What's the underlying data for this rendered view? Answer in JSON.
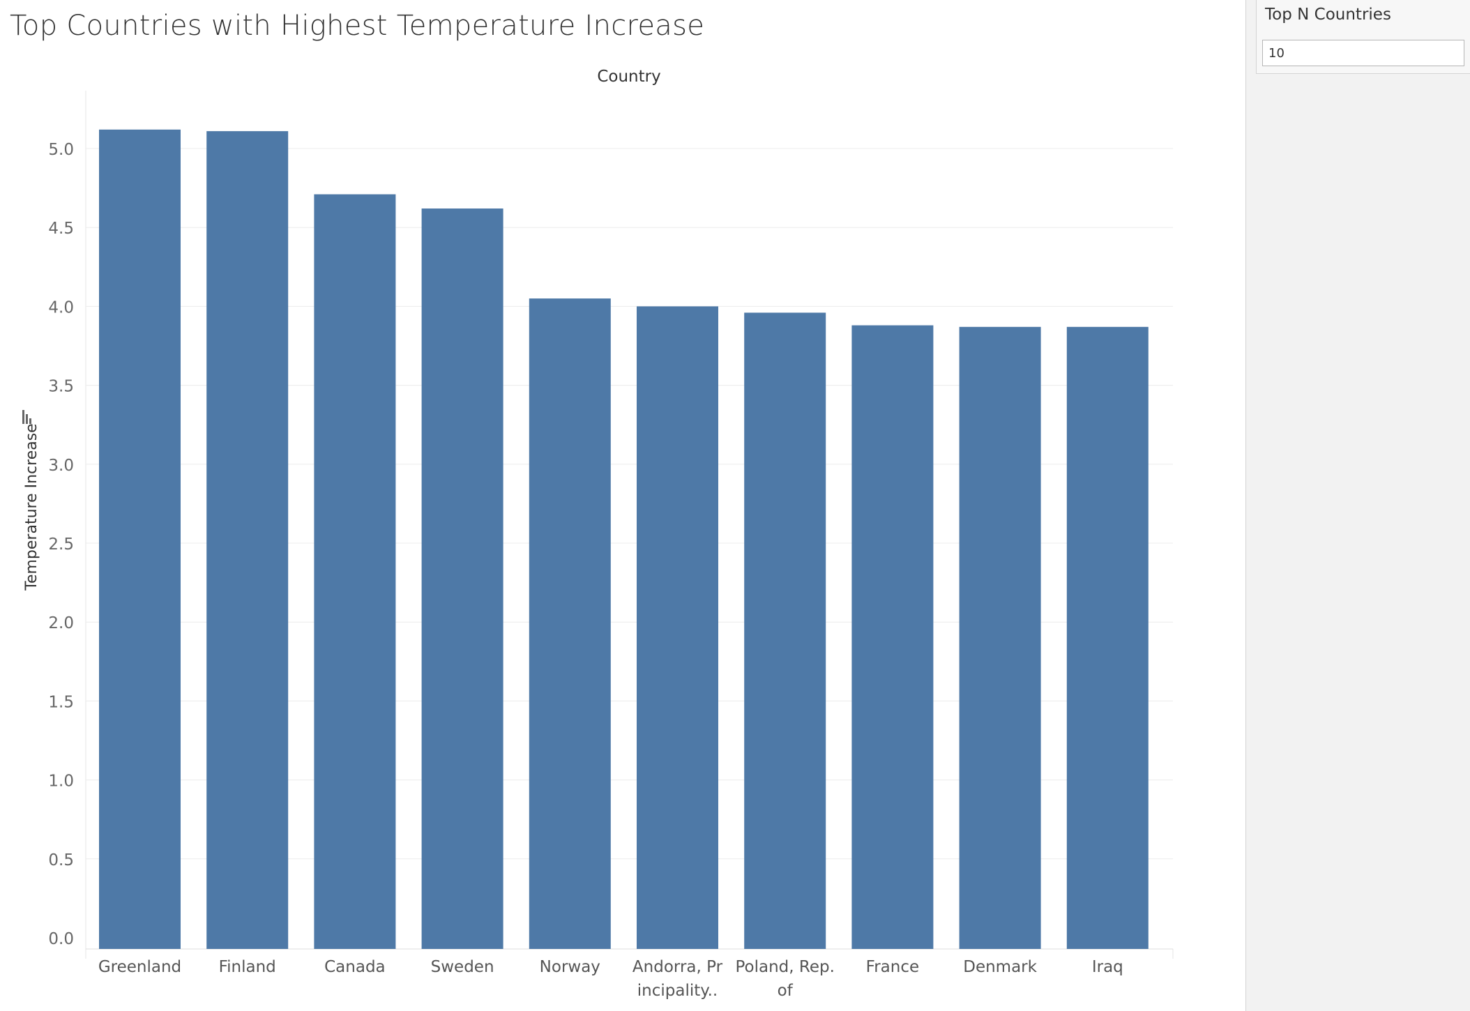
{
  "page": {
    "title": "Top Countries with Highest Temperature Increase"
  },
  "parameter": {
    "title": "Top N Countries",
    "value": "10"
  },
  "chart_data": {
    "type": "bar",
    "title": "Top Countries with Highest Temperature Increase",
    "xlabel": "Country",
    "ylabel": "Temperature Increase",
    "categories": [
      "Greenland",
      "Finland",
      "Canada",
      "Sweden",
      "Norway",
      "Andorra, Principality..",
      "Poland, Rep. of",
      "France",
      "Denmark",
      "Iraq"
    ],
    "category_labels": [
      [
        "Greenland"
      ],
      [
        "Finland"
      ],
      [
        "Canada"
      ],
      [
        "Sweden"
      ],
      [
        "Norway"
      ],
      [
        "Andorra, Pr",
        "incipality.."
      ],
      [
        "Poland, Rep.",
        "of"
      ],
      [
        "France"
      ],
      [
        "Denmark"
      ],
      [
        "Iraq"
      ]
    ],
    "values": [
      5.12,
      5.11,
      4.71,
      4.62,
      4.05,
      4.0,
      3.96,
      3.88,
      3.87,
      3.87
    ],
    "yticks": [
      "0.0",
      "0.5",
      "1.0",
      "1.5",
      "2.0",
      "2.5",
      "3.0",
      "3.5",
      "4.0",
      "4.5",
      "5.0"
    ],
    "ylim": [
      0,
      5.0
    ],
    "grid": true,
    "bar_color": "#4e79a7",
    "sort_icon": "sort-descending-icon"
  }
}
